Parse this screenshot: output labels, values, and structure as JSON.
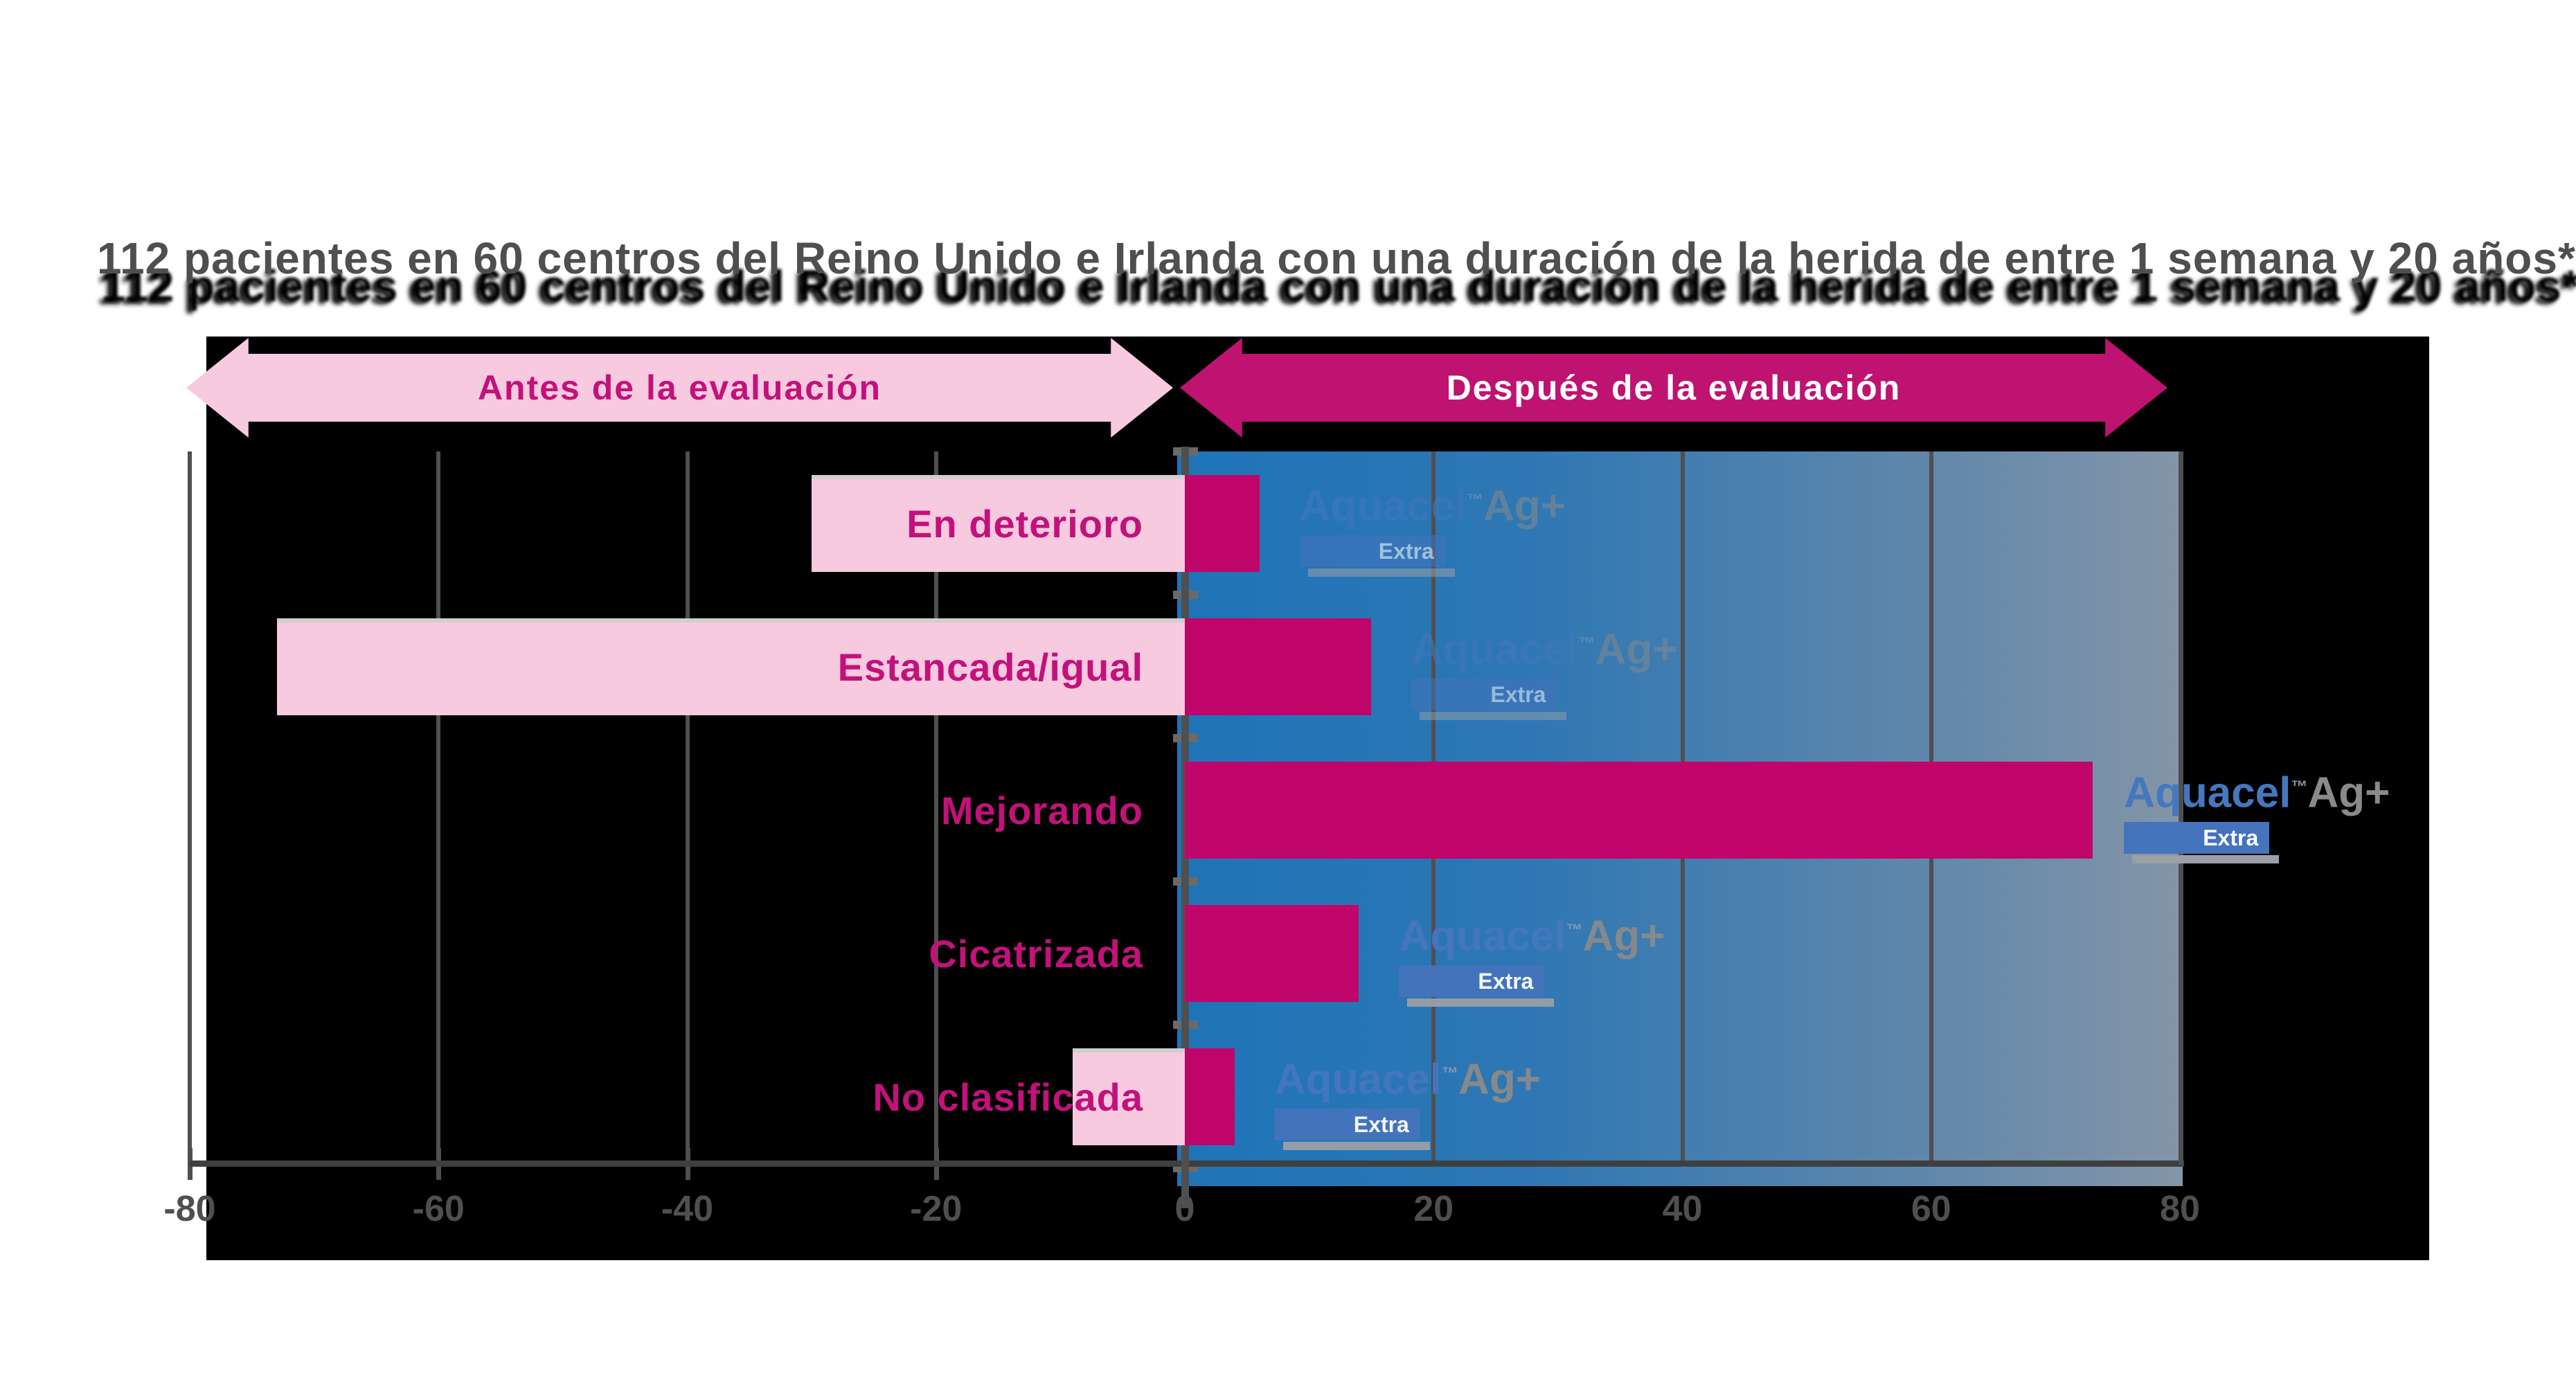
{
  "title": "112 pacientes en 60 centros del Reino Unido e Irlanda con una duración de la herida de entre 1 semana y 20 años*",
  "header": {
    "before_label": "Antes de la evaluación",
    "after_label": "Después de la evaluación"
  },
  "brand": {
    "name": "Aquacel",
    "tm": "™",
    "ag": "Ag+",
    "extra": "Extra"
  },
  "axis": {
    "tick_values": [
      -80,
      -60,
      -40,
      -20,
      0,
      20,
      40,
      60,
      80
    ]
  },
  "chart_data": {
    "type": "bar",
    "orientation": "horizontal-diverging",
    "title": "112 pacientes en 60 centros del Reino Unido e Irlanda con una duración de la herida de entre 1 semana y 20 años*",
    "categories": [
      "En deterioro",
      "Estancada/igual",
      "Mejorando",
      "Cicatrizada",
      "No clasificada"
    ],
    "series": [
      {
        "name": "Antes de la evaluación",
        "values": [
          -30,
          -73,
          0,
          0,
          -9
        ]
      },
      {
        "name": "Después de la evaluación",
        "values": [
          6,
          15,
          73,
          14,
          4
        ]
      }
    ],
    "xlim": [
      -80,
      80
    ],
    "grid": true,
    "legend_position": "top-arrows"
  },
  "colors": {
    "before_bar": "#f8cadf",
    "after_bar": "#bf0569",
    "before_arrow": "#f8cadf",
    "after_arrow": "#be1371",
    "category_text": "#c3117b",
    "panel_blue_start": "#1e74b8",
    "panel_blue_end": "#8495a8",
    "axis_gray": "#4f4f4f",
    "logo_blue": "#4577be",
    "logo_gray": "#8a8a8a",
    "card_black": "#000000"
  }
}
